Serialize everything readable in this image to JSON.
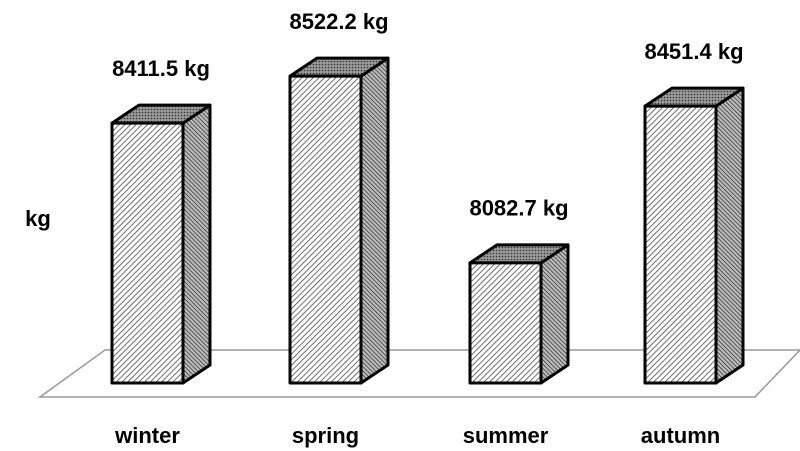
{
  "chart_data": {
    "type": "bar3d",
    "y_label": "kg",
    "categories": [
      "winter",
      "spring",
      "summer",
      "autumn"
    ],
    "values": [
      8411.5,
      8522.2,
      8082.7,
      8451.4
    ],
    "value_labels": [
      "8411.5 kg",
      "8522.2 kg",
      "8082.7 kg",
      "8451.4 kg"
    ],
    "ylim": [
      7800,
      8600
    ]
  }
}
